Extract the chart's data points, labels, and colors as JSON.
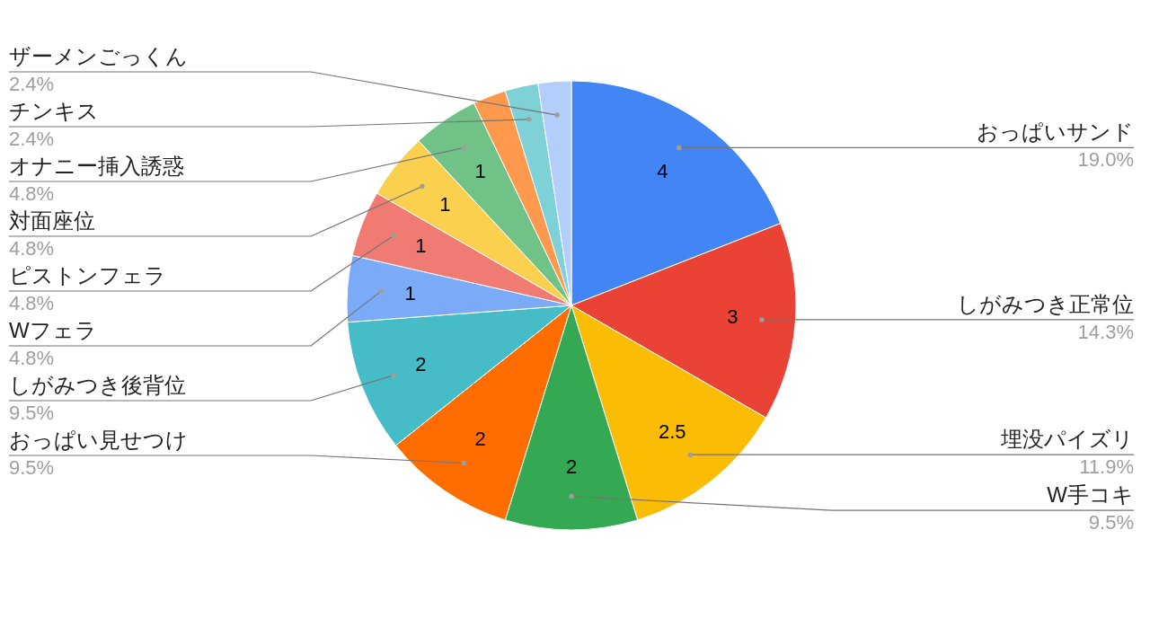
{
  "chart_data": {
    "type": "pie",
    "categories": [
      "おっぱいサンド\n19.0%",
      "しがみつき正常位\n14.3%",
      "埋没パイズリ\n11.9%",
      "W手コキ\n9.5%",
      "おっぱい見せつけ\n9.5%",
      "しがみつき後背位\n9.5%",
      "Wフェラ\n4.8%",
      "ピストンフェラ\n4.8%",
      "対面座位\n4.8%",
      "オナニー挿入誘惑\n4.8%",
      null,
      "チンキス\n2.4%",
      "ザーメンごっくん\n2.4%"
    ],
    "values": [
      4,
      3,
      2.5,
      2,
      2,
      2,
      1,
      1,
      1,
      1,
      0.5,
      0.5,
      0.5
    ],
    "value_labels": [
      "4",
      "3",
      "2.5",
      "2",
      "2",
      "2",
      "1",
      "1",
      "1",
      "1",
      null,
      null,
      null
    ],
    "colors": [
      "#4285f4",
      "#ea4335",
      "#fbbc04",
      "#34a853",
      "#ff6d01",
      "#46bdc6",
      "#7baaf7",
      "#f07b72",
      "#fcd04f",
      "#71c287",
      "#ff994d",
      "#7ed1d7",
      "#b3cefb"
    ]
  }
}
